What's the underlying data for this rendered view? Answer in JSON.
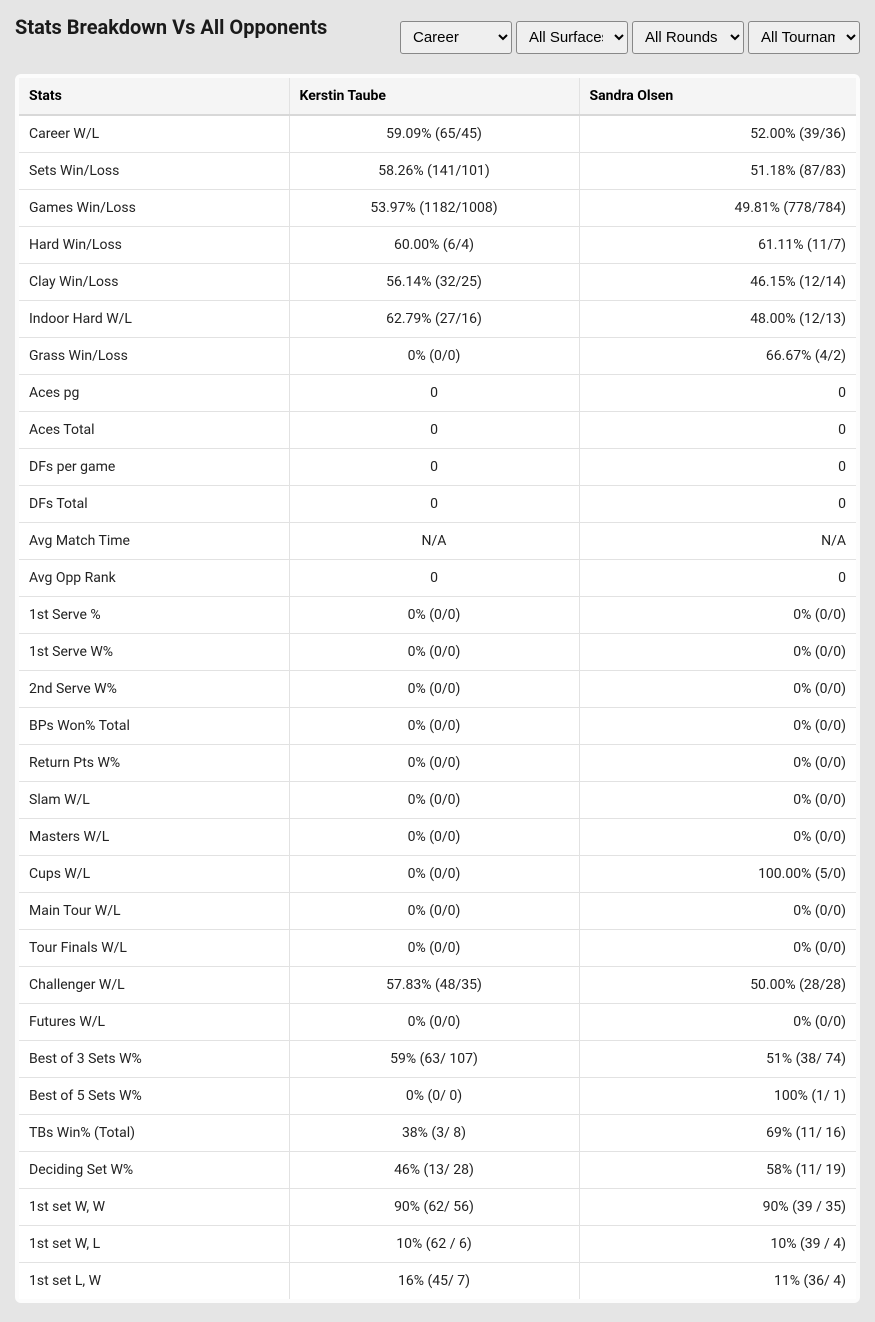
{
  "title": "Stats Breakdown Vs All Opponents",
  "filters": {
    "timeframe": {
      "selected": "Career",
      "options": [
        "Career"
      ]
    },
    "surface": {
      "selected": "All Surfaces",
      "options": [
        "All Surfaces"
      ]
    },
    "round": {
      "selected": "All Rounds",
      "options": [
        "All Rounds"
      ]
    },
    "tournament": {
      "selected": "All Tournaments",
      "options": [
        "All Tournaments"
      ]
    }
  },
  "table": {
    "header_stat": "Stats",
    "player1": "Kerstin Taube",
    "player2": "Sandra Olsen",
    "rows": [
      {
        "stat": "Career W/L",
        "p1": "59.09% (65/45)",
        "p2": "52.00% (39/36)"
      },
      {
        "stat": "Sets Win/Loss",
        "p1": "58.26% (141/101)",
        "p2": "51.18% (87/83)"
      },
      {
        "stat": "Games Win/Loss",
        "p1": "53.97% (1182/1008)",
        "p2": "49.81% (778/784)"
      },
      {
        "stat": "Hard Win/Loss",
        "p1": "60.00% (6/4)",
        "p2": "61.11% (11/7)"
      },
      {
        "stat": "Clay Win/Loss",
        "p1": "56.14% (32/25)",
        "p2": "46.15% (12/14)"
      },
      {
        "stat": "Indoor Hard W/L",
        "p1": "62.79% (27/16)",
        "p2": "48.00% (12/13)"
      },
      {
        "stat": "Grass Win/Loss",
        "p1": "0% (0/0)",
        "p2": "66.67% (4/2)"
      },
      {
        "stat": "Aces pg",
        "p1": "0",
        "p2": "0"
      },
      {
        "stat": "Aces Total",
        "p1": "0",
        "p2": "0"
      },
      {
        "stat": "DFs per game",
        "p1": "0",
        "p2": "0"
      },
      {
        "stat": "DFs Total",
        "p1": "0",
        "p2": "0"
      },
      {
        "stat": "Avg Match Time",
        "p1": "N/A",
        "p2": "N/A"
      },
      {
        "stat": "Avg Opp Rank",
        "p1": "0",
        "p2": "0"
      },
      {
        "stat": "1st Serve %",
        "p1": "0% (0/0)",
        "p2": "0% (0/0)"
      },
      {
        "stat": "1st Serve W%",
        "p1": "0% (0/0)",
        "p2": "0% (0/0)"
      },
      {
        "stat": "2nd Serve W%",
        "p1": "0% (0/0)",
        "p2": "0% (0/0)"
      },
      {
        "stat": "BPs Won% Total",
        "p1": "0% (0/0)",
        "p2": "0% (0/0)"
      },
      {
        "stat": "Return Pts W%",
        "p1": "0% (0/0)",
        "p2": "0% (0/0)"
      },
      {
        "stat": "Slam W/L",
        "p1": "0% (0/0)",
        "p2": "0% (0/0)"
      },
      {
        "stat": "Masters W/L",
        "p1": "0% (0/0)",
        "p2": "0% (0/0)"
      },
      {
        "stat": "Cups W/L",
        "p1": "0% (0/0)",
        "p2": "100.00% (5/0)"
      },
      {
        "stat": "Main Tour W/L",
        "p1": "0% (0/0)",
        "p2": "0% (0/0)"
      },
      {
        "stat": "Tour Finals W/L",
        "p1": "0% (0/0)",
        "p2": "0% (0/0)"
      },
      {
        "stat": "Challenger W/L",
        "p1": "57.83% (48/35)",
        "p2": "50.00% (28/28)"
      },
      {
        "stat": "Futures W/L",
        "p1": "0% (0/0)",
        "p2": "0% (0/0)"
      },
      {
        "stat": "Best of 3 Sets W%",
        "p1": "59% (63/ 107)",
        "p2": "51% (38/ 74)"
      },
      {
        "stat": "Best of 5 Sets W%",
        "p1": "0% (0/ 0)",
        "p2": "100% (1/ 1)"
      },
      {
        "stat": "TBs Win% (Total)",
        "p1": "38% (3/ 8)",
        "p2": "69% (11/ 16)"
      },
      {
        "stat": "Deciding Set W%",
        "p1": "46% (13/ 28)",
        "p2": "58% (11/ 19)"
      },
      {
        "stat": "1st set W, W",
        "p1": "90% (62/ 56)",
        "p2": "90% (39 / 35)"
      },
      {
        "stat": "1st set W, L",
        "p1": "10% (62 / 6)",
        "p2": "10% (39 / 4)"
      },
      {
        "stat": "1st set L, W",
        "p1": "16% (45/ 7)",
        "p2": "11% (36/ 4)"
      }
    ]
  },
  "styles": {
    "page_bg": "#e5e5e5",
    "table_bg": "#ffffff",
    "header_bg": "#f5f5f5",
    "border_color": "#e2e2e2",
    "text_color": "#1a1a1a"
  }
}
